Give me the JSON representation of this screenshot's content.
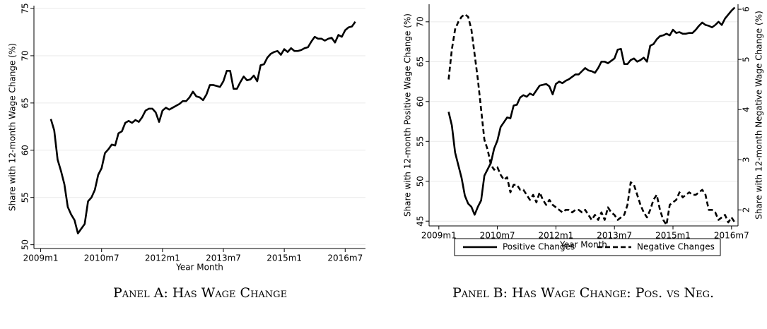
{
  "chart_data": [
    {
      "type": "line",
      "caption": "Panel A: Has Wage Change",
      "xlabel": "Year Month",
      "ylabel": "Share with 12-month Wage Change (%)",
      "x": [
        "2009m4",
        "2009m5",
        "2009m6",
        "2009m7",
        "2009m8",
        "2009m9",
        "2009m10",
        "2009m11",
        "2009m12",
        "2010m1",
        "2010m2",
        "2010m3",
        "2010m4",
        "2010m5",
        "2010m6",
        "2010m7",
        "2010m8",
        "2010m9",
        "2010m10",
        "2010m11",
        "2010m12",
        "2011m1",
        "2011m2",
        "2011m3",
        "2011m4",
        "2011m5",
        "2011m6",
        "2011m7",
        "2011m8",
        "2011m9",
        "2011m10",
        "2011m11",
        "2011m12",
        "2012m1",
        "2012m2",
        "2012m3",
        "2012m4",
        "2012m5",
        "2012m6",
        "2012m7",
        "2012m8",
        "2012m9",
        "2012m10",
        "2012m11",
        "2012m12",
        "2013m1",
        "2013m2",
        "2013m3",
        "2013m4",
        "2013m5",
        "2013m6",
        "2013m7",
        "2013m8",
        "2013m9",
        "2013m10",
        "2013m11",
        "2013m12",
        "2014m1",
        "2014m2",
        "2014m3",
        "2014m4",
        "2014m5",
        "2014m6",
        "2014m7",
        "2014m8",
        "2014m9",
        "2014m10",
        "2014m11",
        "2014m12",
        "2015m1",
        "2015m2",
        "2015m3",
        "2015m4",
        "2015m5",
        "2015m6",
        "2015m7",
        "2015m8",
        "2015m9",
        "2015m10",
        "2015m11",
        "2015m12",
        "2016m1",
        "2016m2",
        "2016m3",
        "2016m4",
        "2016m5",
        "2016m6",
        "2016m7",
        "2016m8",
        "2016m9",
        "2016m10"
      ],
      "values": [
        63.3,
        62.1,
        59.0,
        57.8,
        56.4,
        54.0,
        53.2,
        52.6,
        51.2,
        51.7,
        52.2,
        54.6,
        55.0,
        55.8,
        57.4,
        58.1,
        59.7,
        60.1,
        60.6,
        60.5,
        61.8,
        62.0,
        62.9,
        63.1,
        62.9,
        63.2,
        63.0,
        63.5,
        64.2,
        64.4,
        64.4,
        64.0,
        63.0,
        64.2,
        64.5,
        64.3,
        64.5,
        64.7,
        64.9,
        65.2,
        65.2,
        65.6,
        66.2,
        65.7,
        65.6,
        65.3,
        65.9,
        66.9,
        66.9,
        66.8,
        66.7,
        67.3,
        68.4,
        68.4,
        66.5,
        66.5,
        67.2,
        67.8,
        67.4,
        67.5,
        67.9,
        67.3,
        69.0,
        69.1,
        69.8,
        70.2,
        70.4,
        70.5,
        70.1,
        70.7,
        70.4,
        70.8,
        70.5,
        70.5,
        70.6,
        70.8,
        70.9,
        71.5,
        72.0,
        71.8,
        71.8,
        71.6,
        71.8,
        71.9,
        71.4,
        72.2,
        72.0,
        72.7,
        73.0,
        73.1,
        73.6
      ],
      "color": "#000000",
      "xlim": [
        "2008m11",
        "2017m1"
      ],
      "xticks": [
        "2009m1",
        "2010m7",
        "2012m1",
        "2013m7",
        "2015m1",
        "2016m7"
      ],
      "ylim": [
        49.6,
        75.3
      ],
      "yticks": [
        50,
        55,
        60,
        65,
        70,
        75
      ],
      "grid": true
    },
    {
      "type": "line",
      "caption": "Panel B: Has Wage Change: Pos. vs Neg.",
      "xlabel": "Year Month",
      "ylabel": "Share with 12-month Positive Wage Change (%)",
      "y2label": "Share with 12-month Negative Wage Change (%)",
      "x": [
        "2009m4",
        "2009m5",
        "2009m6",
        "2009m7",
        "2009m8",
        "2009m9",
        "2009m10",
        "2009m11",
        "2009m12",
        "2010m1",
        "2010m2",
        "2010m3",
        "2010m4",
        "2010m5",
        "2010m6",
        "2010m7",
        "2010m8",
        "2010m9",
        "2010m10",
        "2010m11",
        "2010m12",
        "2011m1",
        "2011m2",
        "2011m3",
        "2011m4",
        "2011m5",
        "2011m6",
        "2011m7",
        "2011m8",
        "2011m9",
        "2011m10",
        "2011m11",
        "2011m12",
        "2012m1",
        "2012m2",
        "2012m3",
        "2012m4",
        "2012m5",
        "2012m6",
        "2012m7",
        "2012m8",
        "2012m9",
        "2012m10",
        "2012m11",
        "2012m12",
        "2013m1",
        "2013m2",
        "2013m3",
        "2013m4",
        "2013m5",
        "2013m6",
        "2013m7",
        "2013m8",
        "2013m9",
        "2013m10",
        "2013m11",
        "2013m12",
        "2014m1",
        "2014m2",
        "2014m3",
        "2014m4",
        "2014m5",
        "2014m6",
        "2014m7",
        "2014m8",
        "2014m9",
        "2014m10",
        "2014m11",
        "2014m12",
        "2015m1",
        "2015m2",
        "2015m3",
        "2015m4",
        "2015m5",
        "2015m6",
        "2015m7",
        "2015m8",
        "2015m9",
        "2015m10",
        "2015m11",
        "2015m12",
        "2016m1",
        "2016m2",
        "2016m3",
        "2016m4",
        "2016m5",
        "2016m6",
        "2016m7",
        "2016m8"
      ],
      "series": [
        {
          "name": "Positive Changes",
          "color": "#000000",
          "linestyle": "solid",
          "values": [
            58.7,
            57.0,
            53.6,
            52.0,
            50.4,
            48.2,
            47.2,
            46.8,
            45.8,
            46.8,
            47.6,
            50.7,
            51.5,
            52.3,
            54.1,
            55.1,
            56.8,
            57.4,
            58.0,
            57.9,
            59.5,
            59.6,
            60.5,
            60.8,
            60.6,
            61.0,
            60.8,
            61.4,
            62.0,
            62.1,
            62.2,
            61.9,
            60.9,
            62.2,
            62.5,
            62.3,
            62.6,
            62.8,
            63.1,
            63.4,
            63.4,
            63.8,
            64.2,
            63.9,
            63.8,
            63.6,
            64.2,
            65.0,
            65.0,
            64.8,
            65.1,
            65.4,
            66.5,
            66.6,
            64.7,
            64.7,
            65.2,
            65.4,
            65.0,
            65.2,
            65.5,
            65.0,
            67.0,
            67.2,
            67.8,
            68.2,
            68.3,
            68.5,
            68.3,
            69.0,
            68.6,
            68.7,
            68.5,
            68.5,
            68.6,
            68.6,
            69.0,
            69.5,
            69.9,
            69.6,
            69.5,
            69.3,
            69.6,
            70.0,
            69.6,
            70.4,
            70.9,
            71.4,
            71.8
          ]
        },
        {
          "name": "Negative Changes",
          "color": "#000000",
          "linestyle": "dashed",
          "axis": "y2",
          "values": [
            4.6,
            5.2,
            5.6,
            5.75,
            5.85,
            5.9,
            5.85,
            5.6,
            5.1,
            4.6,
            4.0,
            3.4,
            3.2,
            2.9,
            2.8,
            2.85,
            2.7,
            2.6,
            2.65,
            2.35,
            2.5,
            2.5,
            2.4,
            2.4,
            2.3,
            2.2,
            2.3,
            2.15,
            2.35,
            2.2,
            2.1,
            2.2,
            2.1,
            2.05,
            2.0,
            1.95,
            2.0,
            2.0,
            1.95,
            2.0,
            2.0,
            1.95,
            2.0,
            1.9,
            1.8,
            1.9,
            1.8,
            1.95,
            1.8,
            2.05,
            1.95,
            1.9,
            1.8,
            1.85,
            1.9,
            2.1,
            2.55,
            2.5,
            2.3,
            2.1,
            1.95,
            1.85,
            2.0,
            2.2,
            2.3,
            2.0,
            1.8,
            1.7,
            2.1,
            2.15,
            2.2,
            2.35,
            2.25,
            2.3,
            2.35,
            2.3,
            2.3,
            2.35,
            2.4,
            2.3,
            2.0,
            2.0,
            1.95,
            1.8,
            1.85,
            1.9,
            1.75,
            1.85,
            1.75
          ]
        }
      ],
      "xlim": [
        "2008m10",
        "2016m9"
      ],
      "xticks": [
        "2009m1",
        "2010m7",
        "2012m1",
        "2013m7",
        "2015m1",
        "2016m7"
      ],
      "ylim": [
        44.4,
        72.2
      ],
      "yticks": [
        45,
        50,
        55,
        60,
        65,
        70
      ],
      "y2lim": [
        1.68,
        6.1
      ],
      "y2ticks": [
        2,
        3,
        4,
        5,
        6
      ],
      "grid": true,
      "legend": "bottom"
    }
  ]
}
